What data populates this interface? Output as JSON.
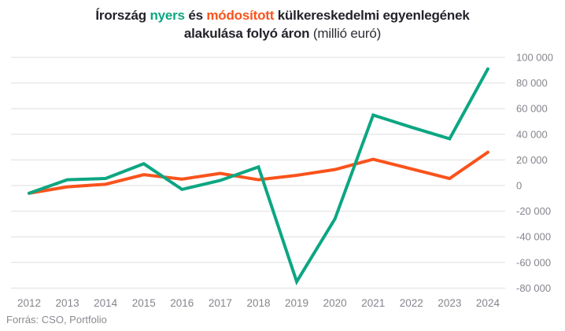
{
  "title": {
    "lines": [
      {
        "parts": [
          {
            "name": "title-text",
            "style": "dark",
            "text": "Írország "
          },
          {
            "name": "raw-series-label",
            "style": "green",
            "text": "nyers"
          },
          {
            "name": "title-text",
            "style": "dark",
            "text": " és "
          },
          {
            "name": "modified-series-label",
            "style": "orange",
            "text": "módosított"
          },
          {
            "name": "title-text",
            "style": "dark",
            "text": " külkereskedelmi egyenlegének"
          }
        ]
      },
      {
        "parts": [
          {
            "name": "title-text",
            "style": "dark",
            "text": "alakulása folyó áron "
          },
          {
            "name": "title-unit",
            "style": "light",
            "text": "(millió euró)"
          }
        ]
      }
    ]
  },
  "source": {
    "label": "Forrás: CSO, Portfolio"
  },
  "colors": {
    "raw_green": "#0ca682",
    "modified_orange": "#f9531c",
    "gridline": "#dedede",
    "axis_label": "#85858d",
    "title_dark": "#23232b"
  },
  "chart_data": {
    "type": "line",
    "title": "Írország nyers és módosított külkereskedelmi egyenlegének alakulása folyó áron (millió euró)",
    "categories": [
      "2012",
      "2013",
      "2014",
      "2015",
      "2016",
      "2017",
      "2018",
      "2019",
      "2020",
      "2021",
      "2022",
      "2023",
      "2024"
    ],
    "series": [
      {
        "name": "nyers",
        "key": "raw",
        "color": "#0ca682",
        "values": [
          -6000,
          4500,
          5500,
          17000,
          -3000,
          4000,
          14500,
          -75000,
          -26000,
          55000,
          45500,
          36500,
          91000
        ]
      },
      {
        "name": "módosított",
        "key": "modified",
        "color": "#f9531c",
        "values": [
          -6000,
          -1000,
          1000,
          8500,
          5000,
          9500,
          4500,
          8000,
          12500,
          20500,
          13000,
          5500,
          26000
        ]
      }
    ],
    "ylim": [
      -80000,
      100000
    ],
    "yticks": [
      {
        "value": 100000,
        "label": "100 000"
      },
      {
        "value": 80000,
        "label": "80 000"
      },
      {
        "value": 60000,
        "label": "60 000"
      },
      {
        "value": 40000,
        "label": "40 000"
      },
      {
        "value": 20000,
        "label": "20 000"
      },
      {
        "value": 0,
        "label": "0"
      },
      {
        "value": -20000,
        "label": "-20 000"
      },
      {
        "value": -40000,
        "label": "-40 000"
      },
      {
        "value": -60000,
        "label": "-60 000"
      },
      {
        "value": -80000,
        "label": "-80 000"
      }
    ],
    "grid": true,
    "legend": "inline-in-title",
    "y_axis_side": "right",
    "unit": "millió euró"
  }
}
